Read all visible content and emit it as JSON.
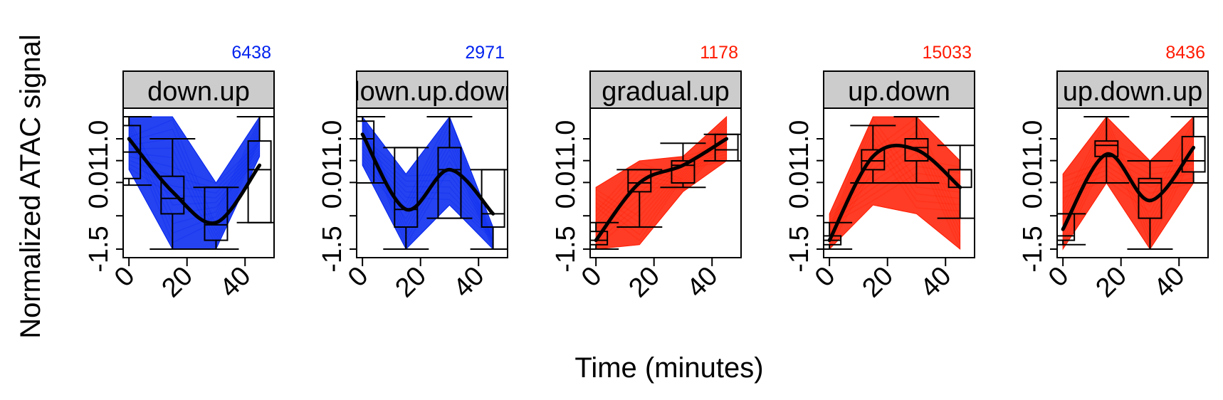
{
  "figure": {
    "ylabel": "Normalized ATAC signal",
    "xlabel": "Time (minutes)"
  },
  "colors": {
    "blue": "#0022ee",
    "red": "#ff1a00",
    "strip": "#cccccc"
  },
  "chart_data": [
    {
      "type": "line",
      "title": "down.up",
      "count": "6438",
      "color": "blue",
      "x": [
        0,
        15,
        30,
        45
      ],
      "x_ticks": [
        "0",
        "20",
        "40"
      ],
      "y_ticks": [
        "-1.5",
        "0.01",
        "1.0"
      ],
      "ylim": [
        -1.5,
        1.5
      ],
      "envelope_max": [
        1.5,
        1.5,
        0.0,
        1.5
      ],
      "envelope_min": [
        0.3,
        -1.5,
        -1.5,
        0.6
      ],
      "boxes": [
        {
          "x": 0,
          "whisker_low": -0.05,
          "q1": 0.1,
          "median": 0.7,
          "q3": 1.3,
          "whisker_high": 1.5
        },
        {
          "x": 15,
          "whisker_low": -1.5,
          "q1": -0.7,
          "median": -0.35,
          "q3": 0.15,
          "whisker_high": 1.0
        },
        {
          "x": 30,
          "whisker_low": -1.5,
          "q1": -1.3,
          "median": -0.95,
          "q3": -0.1,
          "whisker_high": -0.1
        },
        {
          "x": 45,
          "whisker_low": -0.9,
          "q1": -0.9,
          "median": 0.3,
          "q3": 0.95,
          "whisker_high": 1.5
        }
      ],
      "trend": [
        1.0,
        -0.2,
        -0.9,
        0.4
      ]
    },
    {
      "type": "line",
      "title": "down.up.down",
      "count": "2971",
      "color": "blue",
      "x": [
        0,
        15,
        30,
        45
      ],
      "x_ticks": [
        "0",
        "20",
        "40"
      ],
      "y_ticks": [
        "-1.5",
        "0.01",
        "1.0"
      ],
      "ylim": [
        -1.5,
        1.5
      ],
      "envelope_max": [
        1.5,
        0.2,
        1.5,
        -1.0
      ],
      "envelope_min": [
        0.4,
        -1.5,
        -0.5,
        -1.5
      ],
      "boxes": [
        {
          "x": 0,
          "whisker_low": 0.0,
          "q1": 0.0,
          "median": 1.0,
          "q3": 1.4,
          "whisker_high": 1.5
        },
        {
          "x": 15,
          "whisker_low": -1.5,
          "q1": -1.0,
          "median": -0.6,
          "q3": 0.8,
          "whisker_high": 0.8
        },
        {
          "x": 30,
          "whisker_low": -0.8,
          "q1": -0.8,
          "median": 0.3,
          "q3": 0.8,
          "whisker_high": 1.5
        },
        {
          "x": 45,
          "whisker_low": -1.5,
          "q1": -1.0,
          "median": -0.7,
          "q3": 0.3,
          "whisker_high": 0.3
        }
      ],
      "trend": [
        1.1,
        -0.6,
        0.3,
        -0.7
      ]
    },
    {
      "type": "line",
      "title": "gradual.up",
      "count": "1178",
      "color": "red",
      "x": [
        0,
        15,
        30,
        45
      ],
      "x_ticks": [
        "0",
        "20",
        "40"
      ],
      "y_ticks": [
        "-1.5",
        "0.01",
        "1.0"
      ],
      "ylim": [
        -1.5,
        1.5
      ],
      "envelope_max": [
        -0.1,
        0.5,
        0.6,
        1.5
      ],
      "envelope_min": [
        -1.5,
        -1.4,
        -0.2,
        0.5
      ],
      "boxes": [
        {
          "x": 0,
          "whisker_low": -1.5,
          "q1": -1.4,
          "median": -1.3,
          "q3": -1.1,
          "whisker_high": -0.9
        },
        {
          "x": 15,
          "whisker_low": -1.0,
          "q1": -0.2,
          "median": 0.0,
          "q3": 0.3,
          "whisker_high": 0.3
        },
        {
          "x": 30,
          "whisker_low": -0.1,
          "q1": 0.0,
          "median": 0.4,
          "q3": 0.5,
          "whisker_high": 0.9
        },
        {
          "x": 45,
          "whisker_low": 0.5,
          "q1": 0.5,
          "median": 0.75,
          "q3": 1.1,
          "whisker_high": 1.1
        }
      ],
      "trend": [
        -1.3,
        0.0,
        0.4,
        1.0
      ]
    },
    {
      "type": "line",
      "title": "up.down",
      "count": "15033",
      "color": "red",
      "x": [
        0,
        15,
        30,
        45
      ],
      "x_ticks": [
        "0",
        "20",
        "40"
      ],
      "y_ticks": [
        "-1.5",
        "0.01",
        "1.0"
      ],
      "ylim": [
        -1.5,
        1.5
      ],
      "envelope_max": [
        -0.7,
        1.5,
        1.5,
        0.5
      ],
      "envelope_min": [
        -1.5,
        -0.5,
        -0.7,
        -1.5
      ],
      "boxes": [
        {
          "x": 0,
          "whisker_low": -1.5,
          "q1": -1.4,
          "median": -1.3,
          "q3": -1.2,
          "whisker_high": -0.9
        },
        {
          "x": 15,
          "whisker_low": 0.0,
          "q1": 0.3,
          "median": 0.5,
          "q3": 0.75,
          "whisker_high": 1.3
        },
        {
          "x": 30,
          "whisker_low": 0.0,
          "q1": 0.5,
          "median": 0.8,
          "q3": 1.0,
          "whisker_high": 1.5
        },
        {
          "x": 45,
          "whisker_low": -0.8,
          "q1": -0.1,
          "median": 0.3,
          "q3": 0.3,
          "whisker_high": 0.85
        }
      ],
      "trend": [
        -1.3,
        0.6,
        0.75,
        -0.1
      ]
    },
    {
      "type": "line",
      "title": "up.down.up",
      "count": "8436",
      "color": "red",
      "x": [
        0,
        15,
        30,
        45
      ],
      "x_ticks": [
        "0",
        "20",
        "40"
      ],
      "y_ticks": [
        "-1.5",
        "0.01",
        "1.0"
      ],
      "ylim": [
        -1.5,
        1.5
      ],
      "envelope_max": [
        0.2,
        1.5,
        0.5,
        1.5
      ],
      "envelope_min": [
        -1.5,
        0.0,
        -1.5,
        0.0
      ],
      "boxes": [
        {
          "x": 0,
          "whisker_low": -1.4,
          "q1": -1.3,
          "median": -1.2,
          "q3": -0.7,
          "whisker_high": -0.7
        },
        {
          "x": 15,
          "whisker_low": 0.0,
          "q1": 0.6,
          "median": 0.85,
          "q3": 0.95,
          "whisker_high": 1.5
        },
        {
          "x": 30,
          "whisker_low": -1.5,
          "q1": -0.8,
          "median": 0.0,
          "q3": 0.1,
          "whisker_high": 0.5
        },
        {
          "x": 45,
          "whisker_low": 0.0,
          "q1": 0.25,
          "median": 0.5,
          "q3": 1.05,
          "whisker_high": 1.5
        }
      ],
      "trend": [
        -1.05,
        0.65,
        -0.4,
        0.8
      ]
    }
  ]
}
